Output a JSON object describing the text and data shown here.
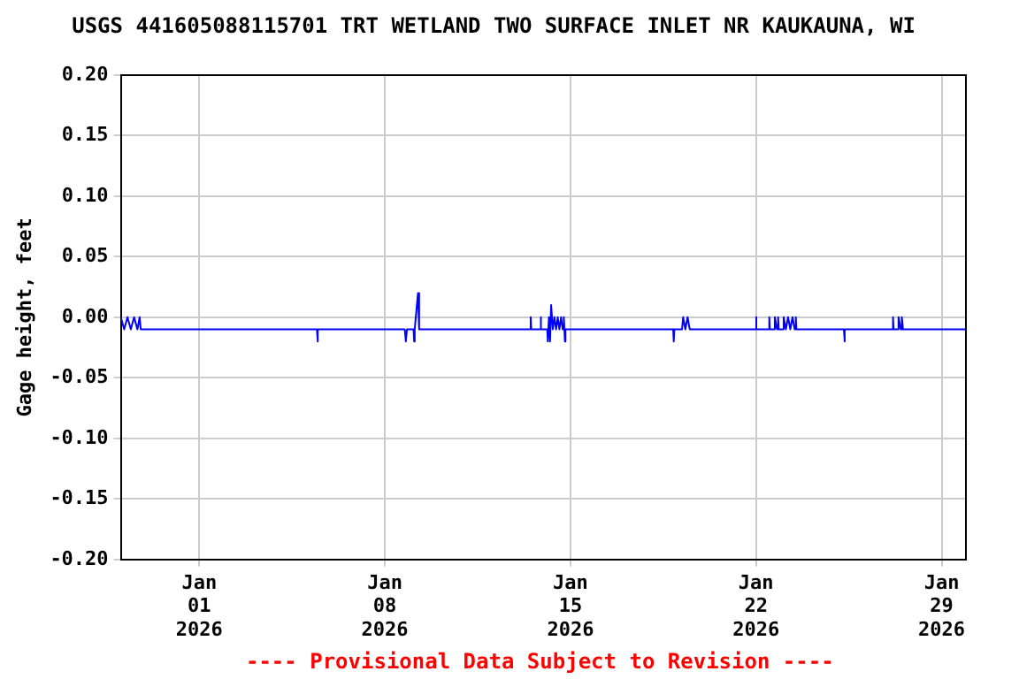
{
  "chart_data": {
    "type": "line",
    "title": "USGS 441605088115701 TRT WETLAND TWO SURFACE INLET NR KAUKAUNA, WI",
    "ylabel": "Gage height, feet",
    "annotations": [
      "---- Provisional Data Subject to Revision ----"
    ],
    "xlim": [
      "2025-12-29T01:00",
      "2026-01-29T22:00"
    ],
    "xticks": [
      {
        "value": "2026-01-01",
        "label": "Jan\n01\n2026"
      },
      {
        "value": "2026-01-08",
        "label": "Jan\n08\n2026"
      },
      {
        "value": "2026-01-15",
        "label": "Jan\n15\n2026"
      },
      {
        "value": "2026-01-22",
        "label": "Jan\n22\n2026"
      },
      {
        "value": "2026-01-29",
        "label": "Jan\n29\n2026"
      }
    ],
    "ylim": [
      -0.2,
      0.2
    ],
    "yticks": [
      {
        "value": -0.2,
        "label": "-0.20"
      },
      {
        "value": -0.15,
        "label": "-0.15"
      },
      {
        "value": -0.1,
        "label": "-0.10"
      },
      {
        "value": -0.05,
        "label": "-0.05"
      },
      {
        "value": 0,
        "label": "0.00"
      },
      {
        "value": 0.05,
        "label": "0.05"
      },
      {
        "value": 0.1,
        "label": "0.10"
      },
      {
        "value": 0.15,
        "label": "0.15"
      },
      {
        "value": 0.2,
        "label": "0.20"
      }
    ],
    "grid": true,
    "legend": false,
    "marker": "none",
    "line_style": "solid",
    "series": [
      {
        "color": "#0000ff",
        "x": [
          "2025-12-29T01:00",
          "2025-12-29T04:00",
          "2025-12-29T07:00",
          "2025-12-29T10:00",
          "2025-12-29T13:00",
          "2025-12-29T16:00",
          "2025-12-29T18:00",
          "2025-12-29T19:00",
          "2026-01-05T10:30",
          "2026-01-05T11:00",
          "2026-01-05T11:30",
          "2026-01-08T18:00",
          "2026-01-08T19:00",
          "2026-01-08T20:00",
          "2026-01-09T02:00",
          "2026-01-09T02:30",
          "2026-01-09T03:00",
          "2026-01-09T05:00",
          "2026-01-09T06:00",
          "2026-01-09T07:00",
          "2026-01-13T11:30",
          "2026-01-13T12:00",
          "2026-01-13T12:30",
          "2026-01-13T20:30",
          "2026-01-13T21:00",
          "2026-01-13T21:30",
          "2026-01-14T03:00",
          "2026-01-14T03:30",
          "2026-01-14T04:30",
          "2026-01-14T05:30",
          "2026-01-14T06:30",
          "2026-01-14T08:00",
          "2026-01-14T09:30",
          "2026-01-14T11:00",
          "2026-01-14T12:30",
          "2026-01-14T14:00",
          "2026-01-14T15:30",
          "2026-01-14T17:00",
          "2026-01-14T18:00",
          "2026-01-14T19:00",
          "2026-01-14T19:30",
          "2026-01-18T21:00",
          "2026-01-18T21:30",
          "2026-01-18T22:00",
          "2026-01-19T05:00",
          "2026-01-19T06:00",
          "2026-01-19T08:00",
          "2026-01-19T10:00",
          "2026-01-19T12:00",
          "2026-01-21T23:30",
          "2026-01-22T00:00",
          "2026-01-22T00:30",
          "2026-01-22T11:30",
          "2026-01-22T12:00",
          "2026-01-22T12:30",
          "2026-01-22T16:30",
          "2026-01-22T17:00",
          "2026-01-22T19:00",
          "2026-01-22T20:00",
          "2026-01-22T20:30",
          "2026-01-23T00:30",
          "2026-01-23T01:00",
          "2026-01-23T03:00",
          "2026-01-23T05:00",
          "2026-01-23T07:00",
          "2026-01-23T09:00",
          "2026-01-23T11:00",
          "2026-01-23T12:00",
          "2026-01-23T12:30",
          "2026-01-25T07:30",
          "2026-01-25T08:00",
          "2026-01-25T08:30",
          "2026-01-27T03:30",
          "2026-01-27T04:00",
          "2026-01-27T04:30",
          "2026-01-27T08:30",
          "2026-01-27T09:00",
          "2026-01-27T11:00",
          "2026-01-27T12:00",
          "2026-01-27T13:00",
          "2026-01-29T22:00"
        ],
        "values": [
          0,
          -0.01,
          0,
          -0.01,
          0,
          -0.01,
          0,
          -0.01,
          -0.01,
          -0.02,
          -0.01,
          -0.01,
          -0.02,
          -0.01,
          -0.01,
          -0.02,
          -0.01,
          0.01,
          0.02,
          -0.01,
          -0.01,
          0,
          -0.01,
          -0.01,
          0,
          -0.01,
          -0.01,
          -0.02,
          0,
          -0.02,
          0.01,
          -0.01,
          0,
          -0.01,
          0,
          -0.01,
          0,
          -0.01,
          0,
          -0.02,
          -0.01,
          -0.01,
          -0.02,
          -0.01,
          -0.01,
          0,
          -0.01,
          0,
          -0.01,
          -0.01,
          0,
          -0.01,
          -0.01,
          0,
          -0.01,
          -0.01,
          0,
          -0.01,
          0,
          -0.01,
          -0.01,
          0,
          -0.01,
          0,
          -0.01,
          0,
          -0.01,
          0,
          -0.01,
          -0.01,
          -0.02,
          -0.01,
          -0.01,
          0,
          -0.01,
          -0.01,
          0,
          -0.01,
          0,
          -0.01,
          -0.01
        ]
      }
    ]
  }
}
